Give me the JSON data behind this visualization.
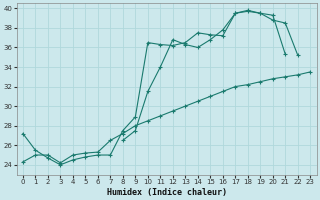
{
  "xlabel": "Humidex (Indice chaleur)",
  "bg_color": "#cce8ec",
  "grid_color": "#b0d8dc",
  "line_color": "#1a7a6e",
  "xlim": [
    -0.5,
    23.5
  ],
  "ylim": [
    23.0,
    40.5
  ],
  "yticks": [
    24,
    26,
    28,
    30,
    32,
    34,
    36,
    38,
    40
  ],
  "xticks": [
    0,
    1,
    2,
    3,
    4,
    5,
    6,
    7,
    8,
    9,
    10,
    11,
    12,
    13,
    14,
    15,
    16,
    17,
    18,
    19,
    20,
    21,
    22,
    23
  ],
  "series1_y": [
    27.2,
    25.5,
    24.7,
    24.0,
    24.5,
    24.8,
    25.0,
    25.0,
    27.5,
    28.9,
    36.5,
    36.3,
    36.2,
    36.5,
    37.5,
    37.3,
    37.2,
    39.5,
    39.7,
    39.5,
    38.8,
    38.5,
    35.2,
    null
  ],
  "series2_y": [
    null,
    null,
    null,
    null,
    null,
    null,
    null,
    null,
    26.5,
    27.5,
    31.5,
    34.0,
    36.8,
    36.3,
    36.0,
    36.8,
    37.8,
    39.5,
    39.8,
    39.5,
    39.3,
    35.3,
    null,
    null
  ],
  "series3_y": [
    24.3,
    25.0,
    25.0,
    24.2,
    25.0,
    25.2,
    25.3,
    26.5,
    27.2,
    28.0,
    28.5,
    29.0,
    29.5,
    30.0,
    30.5,
    31.0,
    31.5,
    32.0,
    32.2,
    32.5,
    32.8,
    33.0,
    33.2,
    33.5
  ],
  "xlabel_fontsize": 6.0,
  "tick_fontsize": 5.0
}
